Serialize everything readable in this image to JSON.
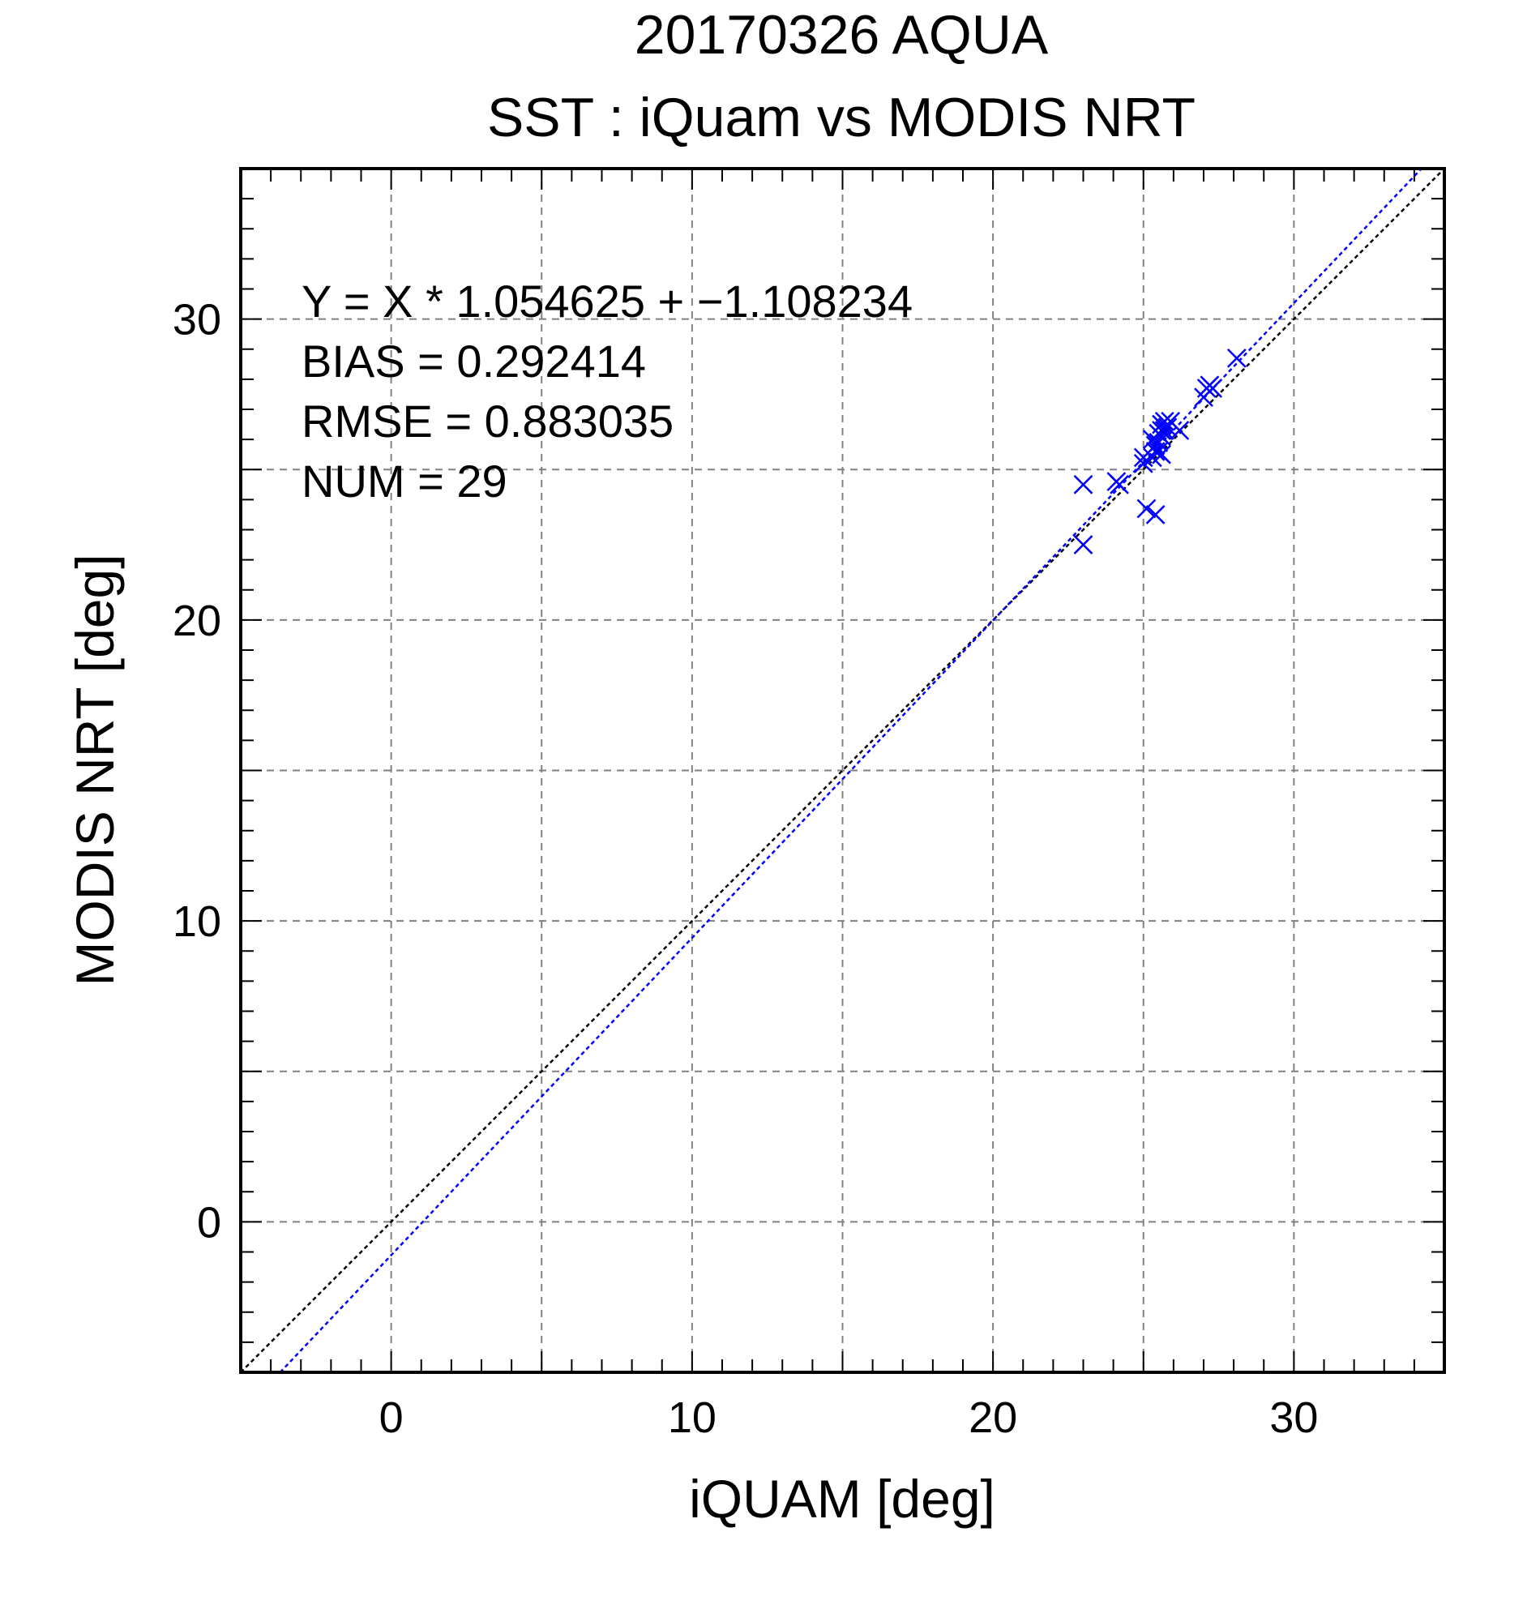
{
  "chart_data": {
    "type": "scatter",
    "title": "20170326 AQUA",
    "subtitle": "SST : iQuam vs MODIS NRT",
    "xlabel": "iQUAM [deg]",
    "ylabel": "MODIS NRT [deg]",
    "xlim": [
      -5,
      35
    ],
    "ylim": [
      -5,
      35
    ],
    "xticks": [
      0,
      10,
      20,
      30
    ],
    "yticks": [
      0,
      10,
      20,
      30
    ],
    "grid": true,
    "grid_step": 5,
    "minor_tick_step": 1,
    "colors": {
      "points": "#0000ff",
      "fit_line": "#0000ff",
      "one_to_one": "#000000",
      "grid": "#808080"
    },
    "stats": {
      "equation": "Y = X * 1.054625 + −1.108234",
      "bias": "BIAS = 0.292414",
      "rmse": "RMSE = 0.883035",
      "num": "NUM = 29"
    },
    "fit": {
      "slope": 1.054625,
      "intercept": -1.108234
    },
    "one_to_one": {
      "slope": 1,
      "intercept": 0
    },
    "series": [
      {
        "marker": "x",
        "x": [
          23.0,
          23.0,
          24.1,
          24.2,
          25.0,
          25.1,
          25.4,
          25.3,
          25.4,
          25.5,
          25.6,
          25.5,
          25.6,
          25.6,
          25.7,
          25.8,
          25.9,
          26.2,
          27.0,
          27.1,
          27.2,
          27.3,
          28.1,
          25.0,
          25.4,
          25.5,
          25.6,
          25.3,
          25.7
        ],
        "y": [
          24.5,
          22.5,
          24.6,
          24.5,
          25.4,
          23.7,
          23.5,
          25.4,
          25.6,
          25.6,
          25.5,
          26.2,
          26.5,
          26.3,
          26.3,
          26.4,
          26.6,
          26.3,
          27.4,
          27.7,
          27.8,
          27.7,
          28.7,
          25.2,
          25.8,
          25.9,
          26.1,
          26.0,
          26.6
        ]
      }
    ]
  }
}
